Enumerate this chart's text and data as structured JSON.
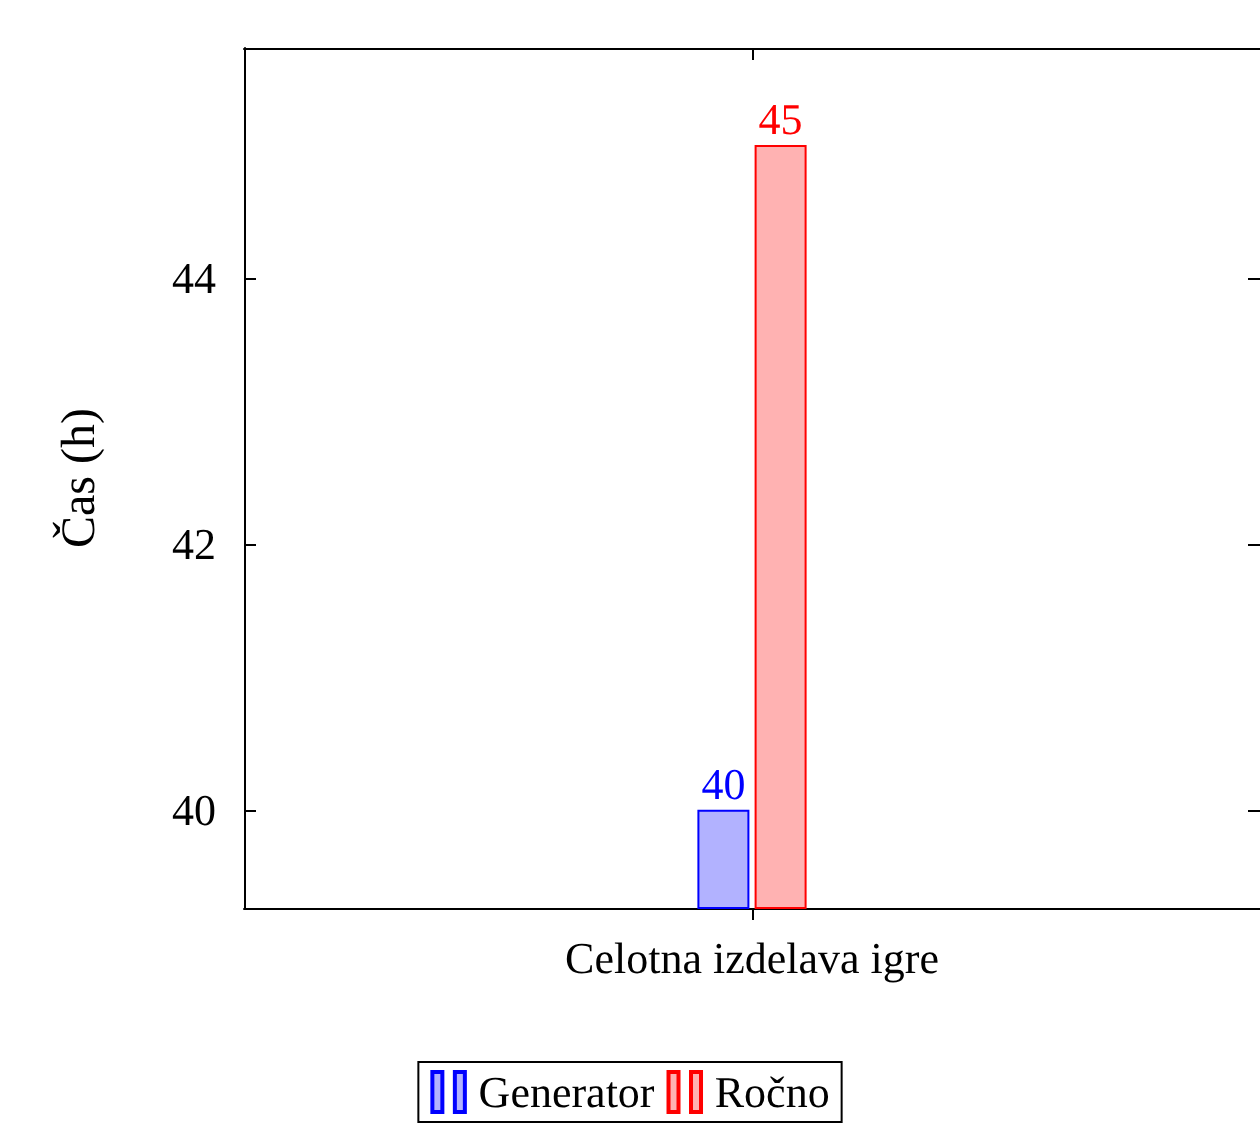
{
  "chart_data": {
    "type": "bar",
    "ylabel": "Čas (h)",
    "categories": [
      "Celotna izdelava igre"
    ],
    "series": [
      {
        "name": "Generator",
        "color": "#0000ff",
        "values": [
          40
        ]
      },
      {
        "name": "Ročno",
        "color": "#ff0000",
        "values": [
          45
        ]
      }
    ],
    "ylim": [
      39.26,
      45.73
    ],
    "yticks": [
      40,
      42,
      44
    ],
    "data_labels": true,
    "legend": "bottom",
    "grid": false
  }
}
